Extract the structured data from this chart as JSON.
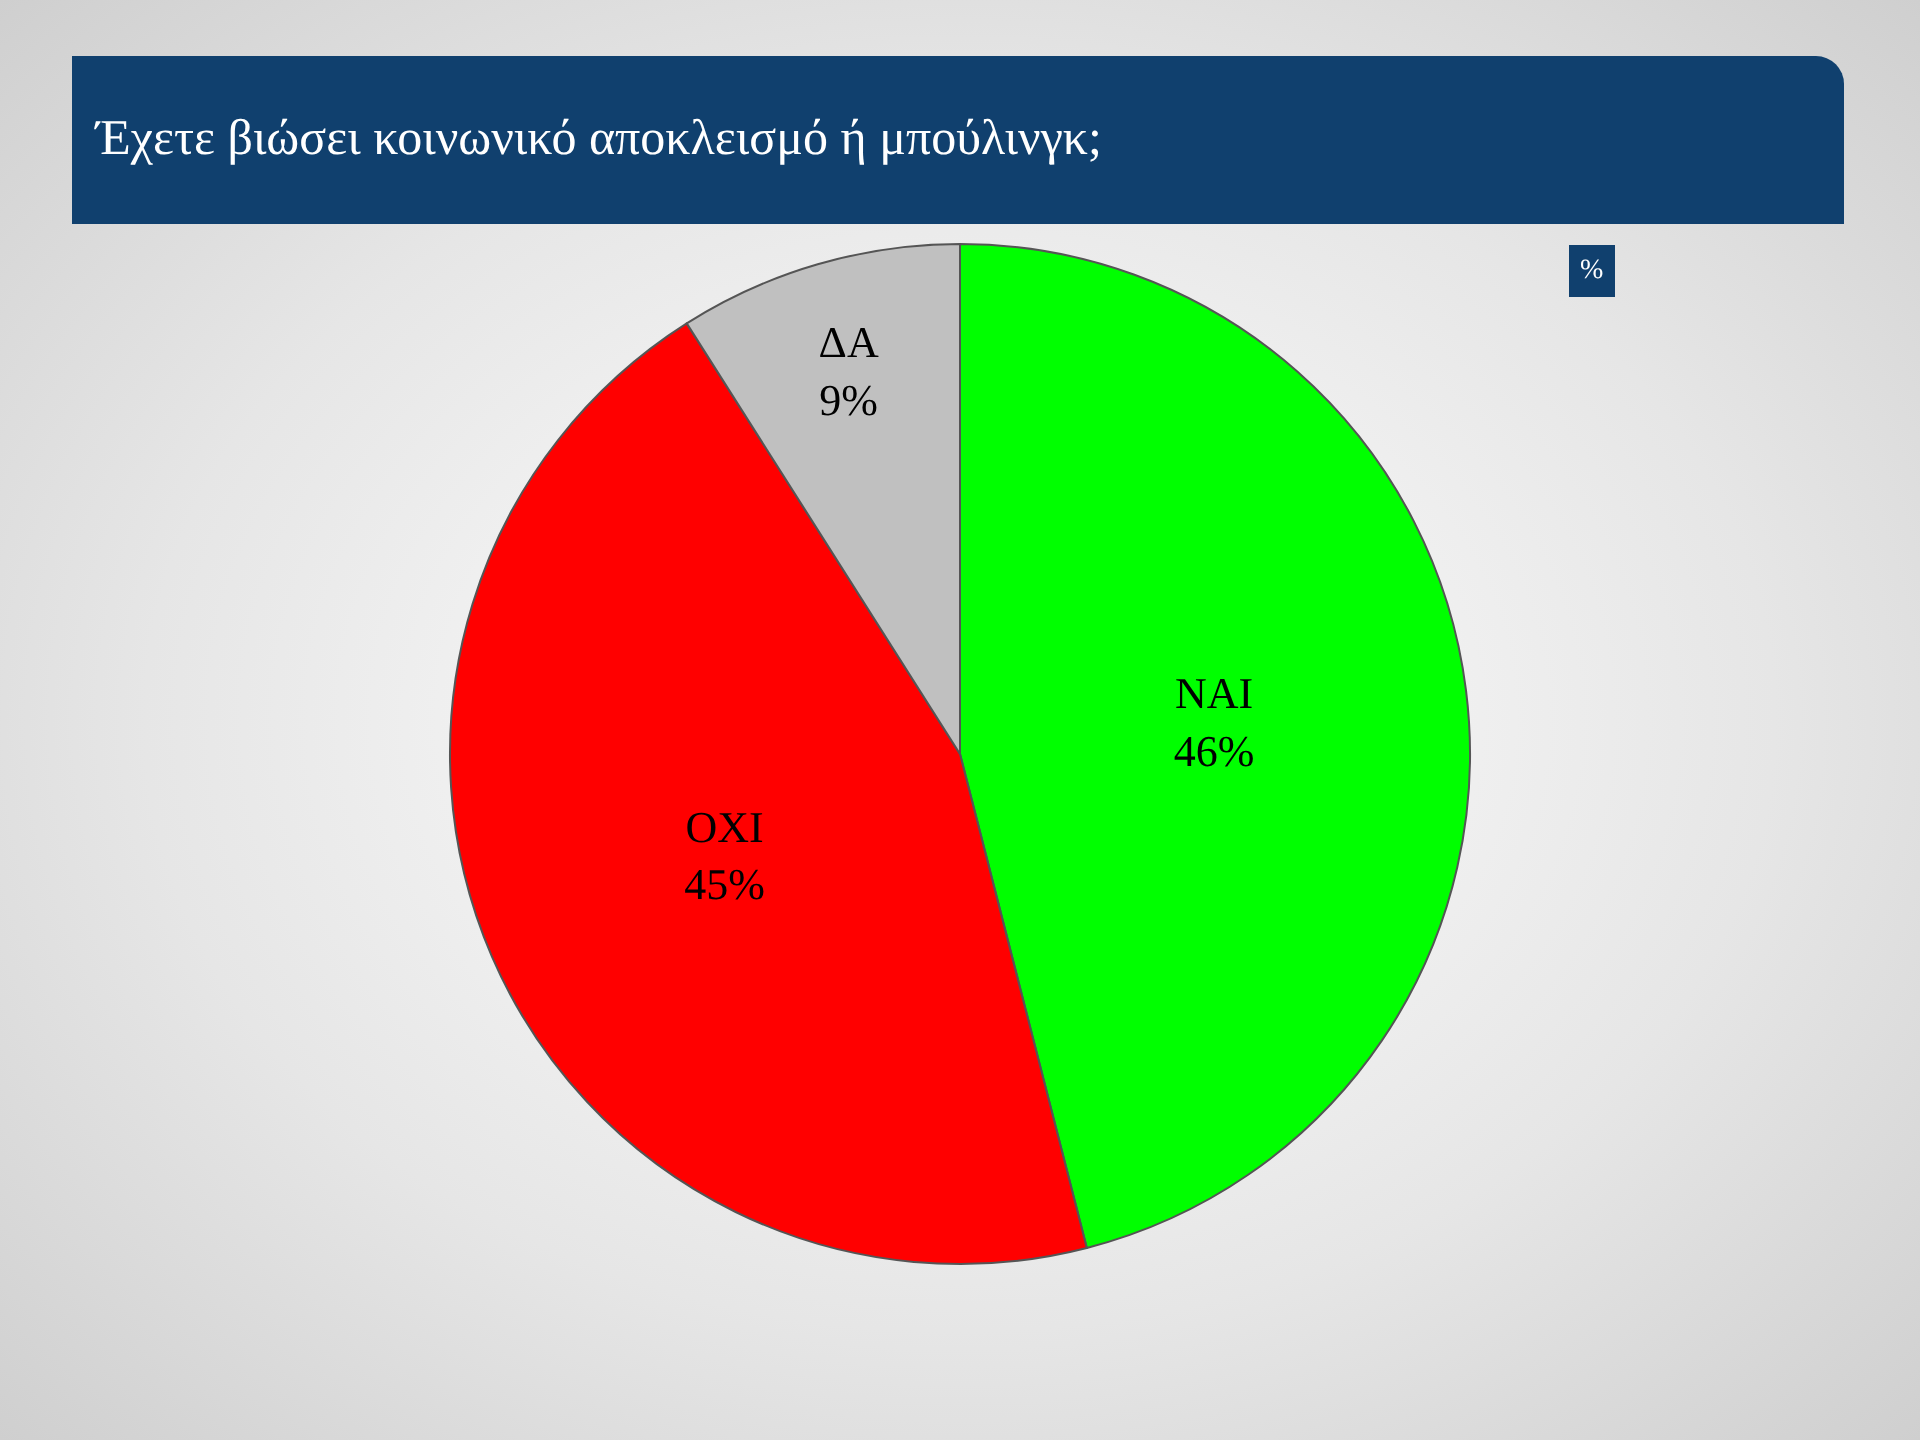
{
  "chart_data": {
    "type": "pie",
    "title": "Έχετε βιώσει κοινωνικό αποκλεισμό ή μπούλινγκ;",
    "categories": [
      "ΝΑΙ",
      "ΟΧΙ",
      "ΔΑ"
    ],
    "values": [
      46,
      45,
      9
    ],
    "value_labels": [
      "46%",
      "45%",
      "9%"
    ],
    "colors": [
      "#00ff00",
      "#ff0000",
      "#c0c0c0"
    ],
    "annotations": [
      "%"
    ],
    "legend": false
  }
}
